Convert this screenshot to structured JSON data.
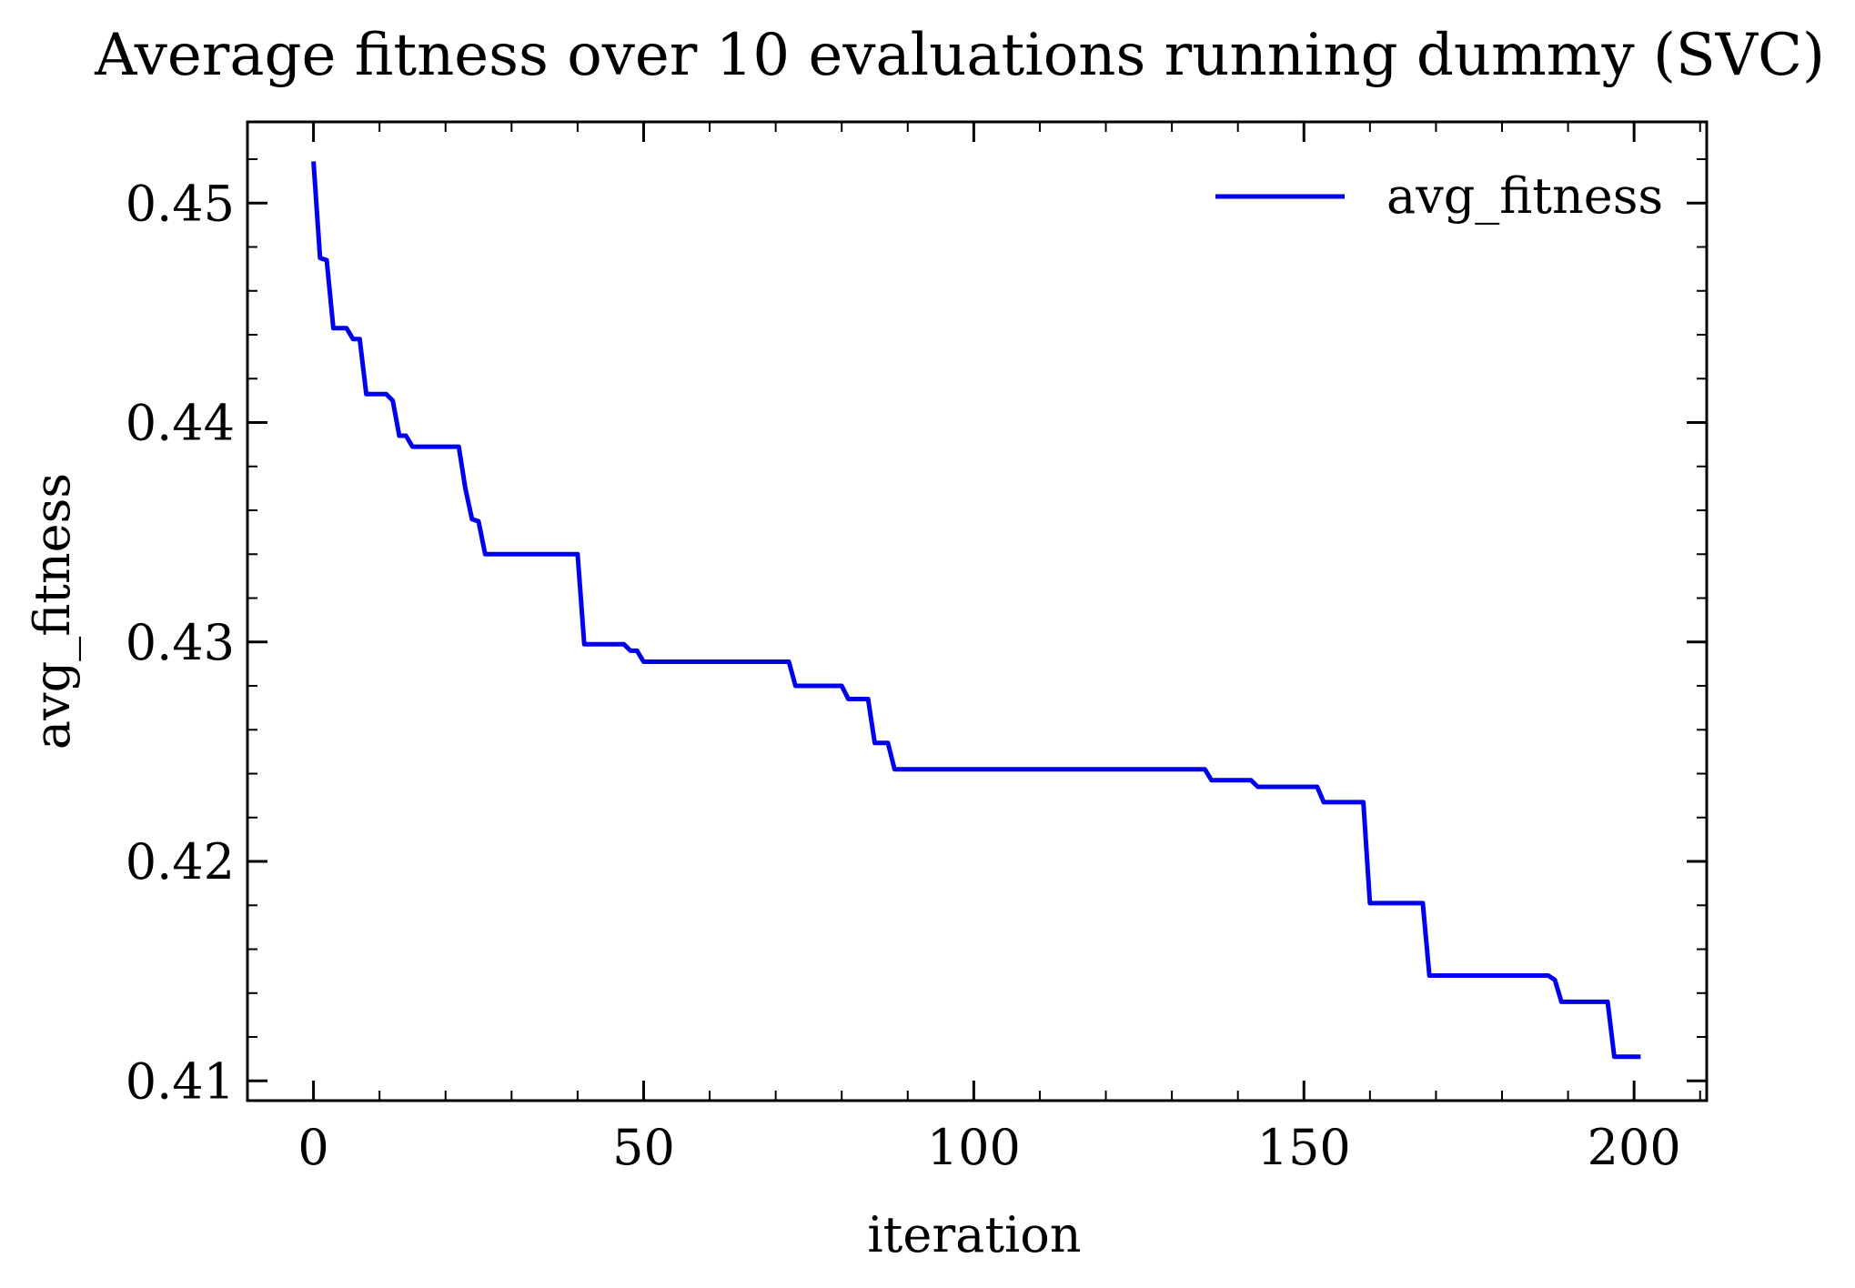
{
  "chart_data": {
    "type": "line",
    "title": "Average fitness over 10 evaluations running dummy (SVC)",
    "xlabel": "iteration",
    "ylabel": "avg_fitness",
    "xlim": [
      -10,
      211
    ],
    "ylim": [
      0.4091,
      0.4537
    ],
    "xticks": [
      0,
      50,
      100,
      150,
      200
    ],
    "xtick_labels": [
      "0",
      "50",
      "100",
      "150",
      "200"
    ],
    "yticks": [
      0.41,
      0.42,
      0.43,
      0.44,
      0.45
    ],
    "ytick_labels": [
      "0.41",
      "0.42",
      "0.43",
      "0.44",
      "0.45"
    ],
    "grid": false,
    "legend": "top-right",
    "series": [
      {
        "name": "avg_fitness",
        "color": "#0000ee",
        "points": [
          [
            0,
            0.4519
          ],
          [
            1,
            0.4475
          ],
          [
            2,
            0.4474
          ],
          [
            3,
            0.4443
          ],
          [
            5,
            0.4443
          ],
          [
            6,
            0.4438
          ],
          [
            7,
            0.4438
          ],
          [
            8,
            0.4413
          ],
          [
            11,
            0.4413
          ],
          [
            12,
            0.441
          ],
          [
            13,
            0.4394
          ],
          [
            14,
            0.4394
          ],
          [
            15,
            0.4389
          ],
          [
            22,
            0.4389
          ],
          [
            23,
            0.437
          ],
          [
            24,
            0.4356
          ],
          [
            25,
            0.4355
          ],
          [
            26,
            0.434
          ],
          [
            40,
            0.434
          ],
          [
            41,
            0.4299
          ],
          [
            47,
            0.4299
          ],
          [
            48,
            0.4296
          ],
          [
            49,
            0.4296
          ],
          [
            50,
            0.4291
          ],
          [
            72,
            0.4291
          ],
          [
            73,
            0.428
          ],
          [
            80,
            0.428
          ],
          [
            81,
            0.4274
          ],
          [
            84,
            0.4274
          ],
          [
            85,
            0.4254
          ],
          [
            87,
            0.4254
          ],
          [
            88,
            0.4242
          ],
          [
            135,
            0.4242
          ],
          [
            136,
            0.4237
          ],
          [
            142,
            0.4237
          ],
          [
            143,
            0.4234
          ],
          [
            152,
            0.4234
          ],
          [
            153,
            0.4227
          ],
          [
            159,
            0.4227
          ],
          [
            160,
            0.4181
          ],
          [
            168,
            0.4181
          ],
          [
            169,
            0.4148
          ],
          [
            187,
            0.4148
          ],
          [
            188,
            0.4146
          ],
          [
            189,
            0.4136
          ],
          [
            196,
            0.4136
          ],
          [
            197,
            0.4111
          ],
          [
            201,
            0.4111
          ]
        ]
      }
    ]
  }
}
